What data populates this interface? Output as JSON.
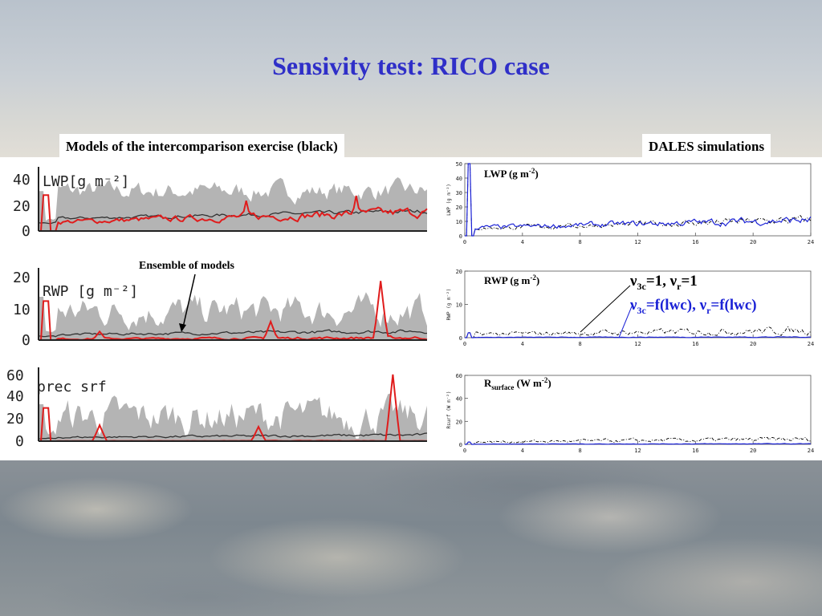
{
  "slide": {
    "title": "Sensivity test: RICO case",
    "left_heading": "Models of the intercomparison exercise (black)",
    "right_heading": "DALES simulations",
    "ensemble_annotation": "Ensemble of models",
    "legend_line1": "ν3c=1, νr=1",
    "legend_line2": "ν3c=f(lwc), νr=f(lwc)"
  },
  "colors": {
    "title": "#2f2fc8",
    "ensemble_band": "#b4b4b4",
    "dales_highlight": "#e01c1c",
    "model_mean": "#333333",
    "blue_run": "#1b22d6",
    "dashed_run": "#000000"
  },
  "chart_data": [
    {
      "type": "area",
      "panel": "left-1",
      "label": "LWP[g m⁻²]",
      "ylim": [
        0,
        45
      ],
      "y_ticks": [
        "0",
        "20",
        "40"
      ],
      "x_range": [
        0,
        24
      ],
      "series": [
        {
          "name": "",
          "role": "ensemble-envelope",
          "color": "#b4b4b4"
        },
        {
          "name": "",
          "role": "model-mean",
          "color": "#333333"
        },
        {
          "name": "",
          "role": "dales",
          "color": "#e01c1c"
        }
      ]
    },
    {
      "type": "area",
      "panel": "left-2",
      "label": "RWP [g m⁻²]",
      "ylim": [
        0,
        20
      ],
      "y_ticks": [
        "0",
        "10",
        "20"
      ],
      "x_range": [
        0,
        24
      ]
    },
    {
      "type": "area",
      "panel": "left-3",
      "label": "prec srf",
      "ylim": [
        0,
        60
      ],
      "y_ticks": [
        "0",
        "20",
        "40",
        "60"
      ],
      "x_range": [
        0,
        24
      ]
    },
    {
      "type": "line",
      "panel": "right-1",
      "label": "LWP (g m⁻²)",
      "ylabel": "LWP (g m⁻²)",
      "ylim": [
        0,
        50
      ],
      "y_ticks": [
        "0",
        "10",
        "20",
        "30",
        "40",
        "50"
      ],
      "x_ticks": [
        "0",
        "4",
        "8",
        "12",
        "16",
        "20",
        "24"
      ],
      "series": [
        {
          "name": "ν3c=1, νr=1",
          "style": "dash-dot",
          "color": "#000000"
        },
        {
          "name": "ν3c=f(lwc), νr=f(lwc)",
          "style": "solid",
          "color": "#1b22d6"
        }
      ]
    },
    {
      "type": "line",
      "panel": "right-2",
      "label": "RWP (g m⁻²)",
      "ylabel": "RWP (g m⁻²)",
      "ylim": [
        0,
        20
      ],
      "y_ticks": [
        "0",
        "10",
        "20"
      ],
      "x_ticks": [
        "0",
        "4",
        "8",
        "12",
        "16",
        "20",
        "24"
      ]
    },
    {
      "type": "line",
      "panel": "right-3",
      "label": "Rsurface (W m⁻²)",
      "ylabel": "Rsurf (W m⁻²)",
      "ylim": [
        0,
        60
      ],
      "y_ticks": [
        "0",
        "20",
        "40",
        "60"
      ],
      "x_ticks": [
        "0",
        "4",
        "8",
        "12",
        "16",
        "20",
        "24"
      ]
    }
  ]
}
